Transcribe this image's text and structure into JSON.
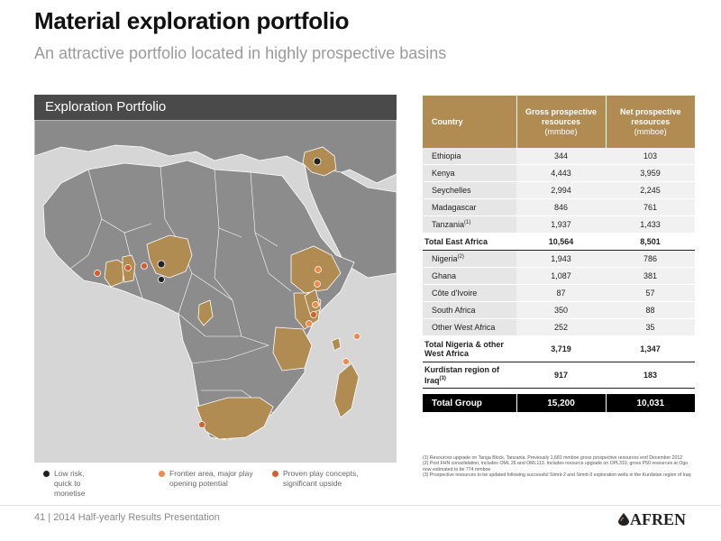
{
  "header": {
    "title": "Material exploration portfolio",
    "subtitle": "An attractive portfolio located in highly prospective basins"
  },
  "map": {
    "panel_title": "Exploration Portfolio"
  },
  "legend": [
    {
      "label": "Low risk, quick to monetise",
      "color": "#222222"
    },
    {
      "label": "Frontier area, major play opening potential",
      "color": "#f08a4b"
    },
    {
      "label": "Proven play concepts, significant upside",
      "color": "#d35f2c"
    }
  ],
  "table": {
    "headers": {
      "country": "Country",
      "gross": "Gross prospective resources",
      "gross_unit": "(mmboe)",
      "net": "Net prospective resources",
      "net_unit": "(mmboe)"
    },
    "east_africa": [
      {
        "country": "Ethiopia",
        "gross": "344",
        "net": "103"
      },
      {
        "country": "Kenya",
        "gross": "4,443",
        "net": "3,959"
      },
      {
        "country": "Seychelles",
        "gross": "2,994",
        "net": "2,245"
      },
      {
        "country": "Madagascar",
        "gross": "846",
        "net": "761"
      },
      {
        "country": "Tanzania",
        "sup": "(1)",
        "gross": "1,937",
        "net": "1,433"
      }
    ],
    "total_east": {
      "label": "Total East Africa",
      "gross": "10,564",
      "net": "8,501"
    },
    "west_africa": [
      {
        "country": "Nigeria",
        "sup": "(2)",
        "gross": "1,943",
        "net": "786"
      },
      {
        "country": "Ghana",
        "gross": "1,087",
        "net": "381"
      },
      {
        "country": "Côte d'Ivoire",
        "gross": "87",
        "net": "57"
      },
      {
        "country": "South Africa",
        "gross": "350",
        "net": "88"
      },
      {
        "country": "Other West Africa",
        "gross": "252",
        "net": "35"
      }
    ],
    "total_west": {
      "label": "Total Nigeria & other West Africa",
      "gross": "3,719",
      "net": "1,347"
    },
    "kurdistan": {
      "label": "Kurdistan region of Iraq",
      "sup": "(3)",
      "gross": "917",
      "net": "183"
    },
    "group": {
      "label": "Total Group",
      "gross": "15,200",
      "net": "10,031"
    }
  },
  "footnotes": [
    "(1) Resources upgrade on Tanga Block, Tanzania. Previously 1,681 mmboe gross prospective resources end December 2012",
    "(2) Post FHN consolidation, includes OML 26 and OML113. Includes resource upgrade on OPL310, gross P50 resources at Ogo now estimated to be 774 mmboe",
    "(3) Prospective resources to be updated following successful Simrit-2 and Simrit-3 exploration wells in the Kurdistan region of Iraq"
  ],
  "footer": {
    "page_label": "41 | 2014 Half-yearly Results Presentation",
    "logo_text": "AFREN"
  }
}
